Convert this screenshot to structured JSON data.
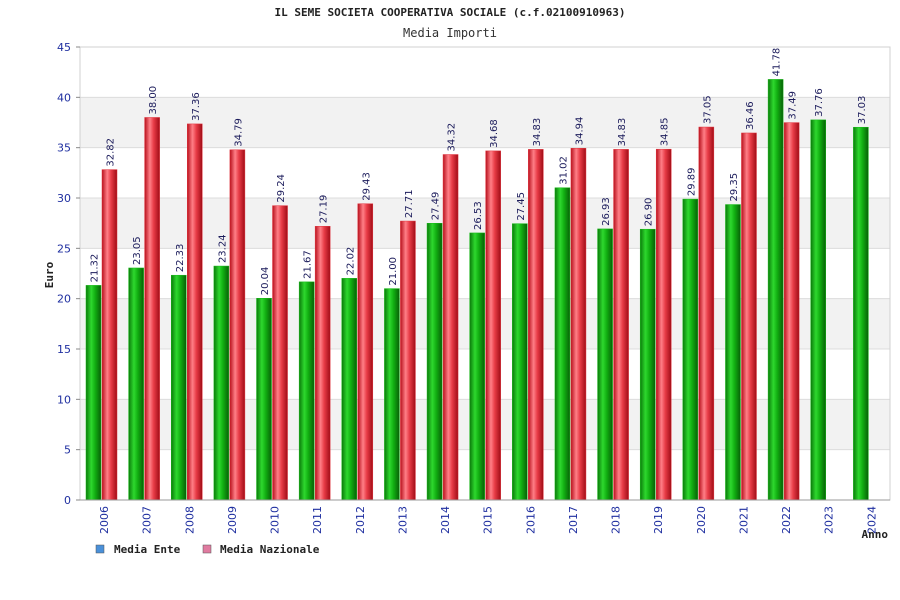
{
  "colors": {
    "ente": "#16b816",
    "nazionale": "#e0333d",
    "legend_ente": "#4a90d9",
    "legend_nazionale": "#e07ba0",
    "tick_text": "#1f2fa0",
    "band": "#f2f2f2",
    "grid": "#dcdcdc"
  },
  "chart_data": {
    "type": "bar",
    "title": "IL SEME SOCIETA COOPERATIVA SOCIALE (c.f.02100910963)",
    "subtitle": "Media Importi",
    "xlabel": "Anno",
    "ylabel": "Euro",
    "ylim": [
      0,
      45
    ],
    "yticks": [
      0,
      5,
      10,
      15,
      20,
      25,
      30,
      35,
      40,
      45
    ],
    "grid": true,
    "legend_position": "bottom-left",
    "categories": [
      "2006",
      "2007",
      "2008",
      "2009",
      "2010",
      "2011",
      "2012",
      "2013",
      "2014",
      "2015",
      "2016",
      "2017",
      "2018",
      "2019",
      "2020",
      "2021",
      "2022",
      "2023",
      "2024"
    ],
    "series": [
      {
        "name": "Media Ente",
        "values": [
          21.32,
          23.05,
          22.33,
          23.24,
          20.04,
          21.67,
          22.02,
          21.0,
          27.49,
          26.53,
          27.45,
          31.02,
          26.93,
          26.9,
          29.89,
          29.35,
          41.78,
          37.76,
          37.03
        ],
        "labels": [
          "21.32",
          "23.05",
          "22.33",
          "23.24",
          "20.04",
          "21.67",
          "22.02",
          "21.00",
          "27.49",
          "26.53",
          "27.45",
          "31.02",
          "26.93",
          "26.90",
          "29.89",
          "29.35",
          "41.78",
          "37.76",
          "37.03"
        ]
      },
      {
        "name": "Media Nazionale",
        "values": [
          32.82,
          38.0,
          37.36,
          34.79,
          29.24,
          27.19,
          29.43,
          27.71,
          34.32,
          34.68,
          34.83,
          34.94,
          34.83,
          34.85,
          37.05,
          36.46,
          37.49,
          null,
          null
        ],
        "labels": [
          "32.82",
          "38.00",
          "37.36",
          "34.79",
          "29.24",
          "27.19",
          "29.43",
          "27.71",
          "34.32",
          "34.68",
          "34.83",
          "34.94",
          "34.83",
          "34.85",
          "37.05",
          "36.46",
          "37.49",
          null,
          null
        ]
      }
    ]
  }
}
